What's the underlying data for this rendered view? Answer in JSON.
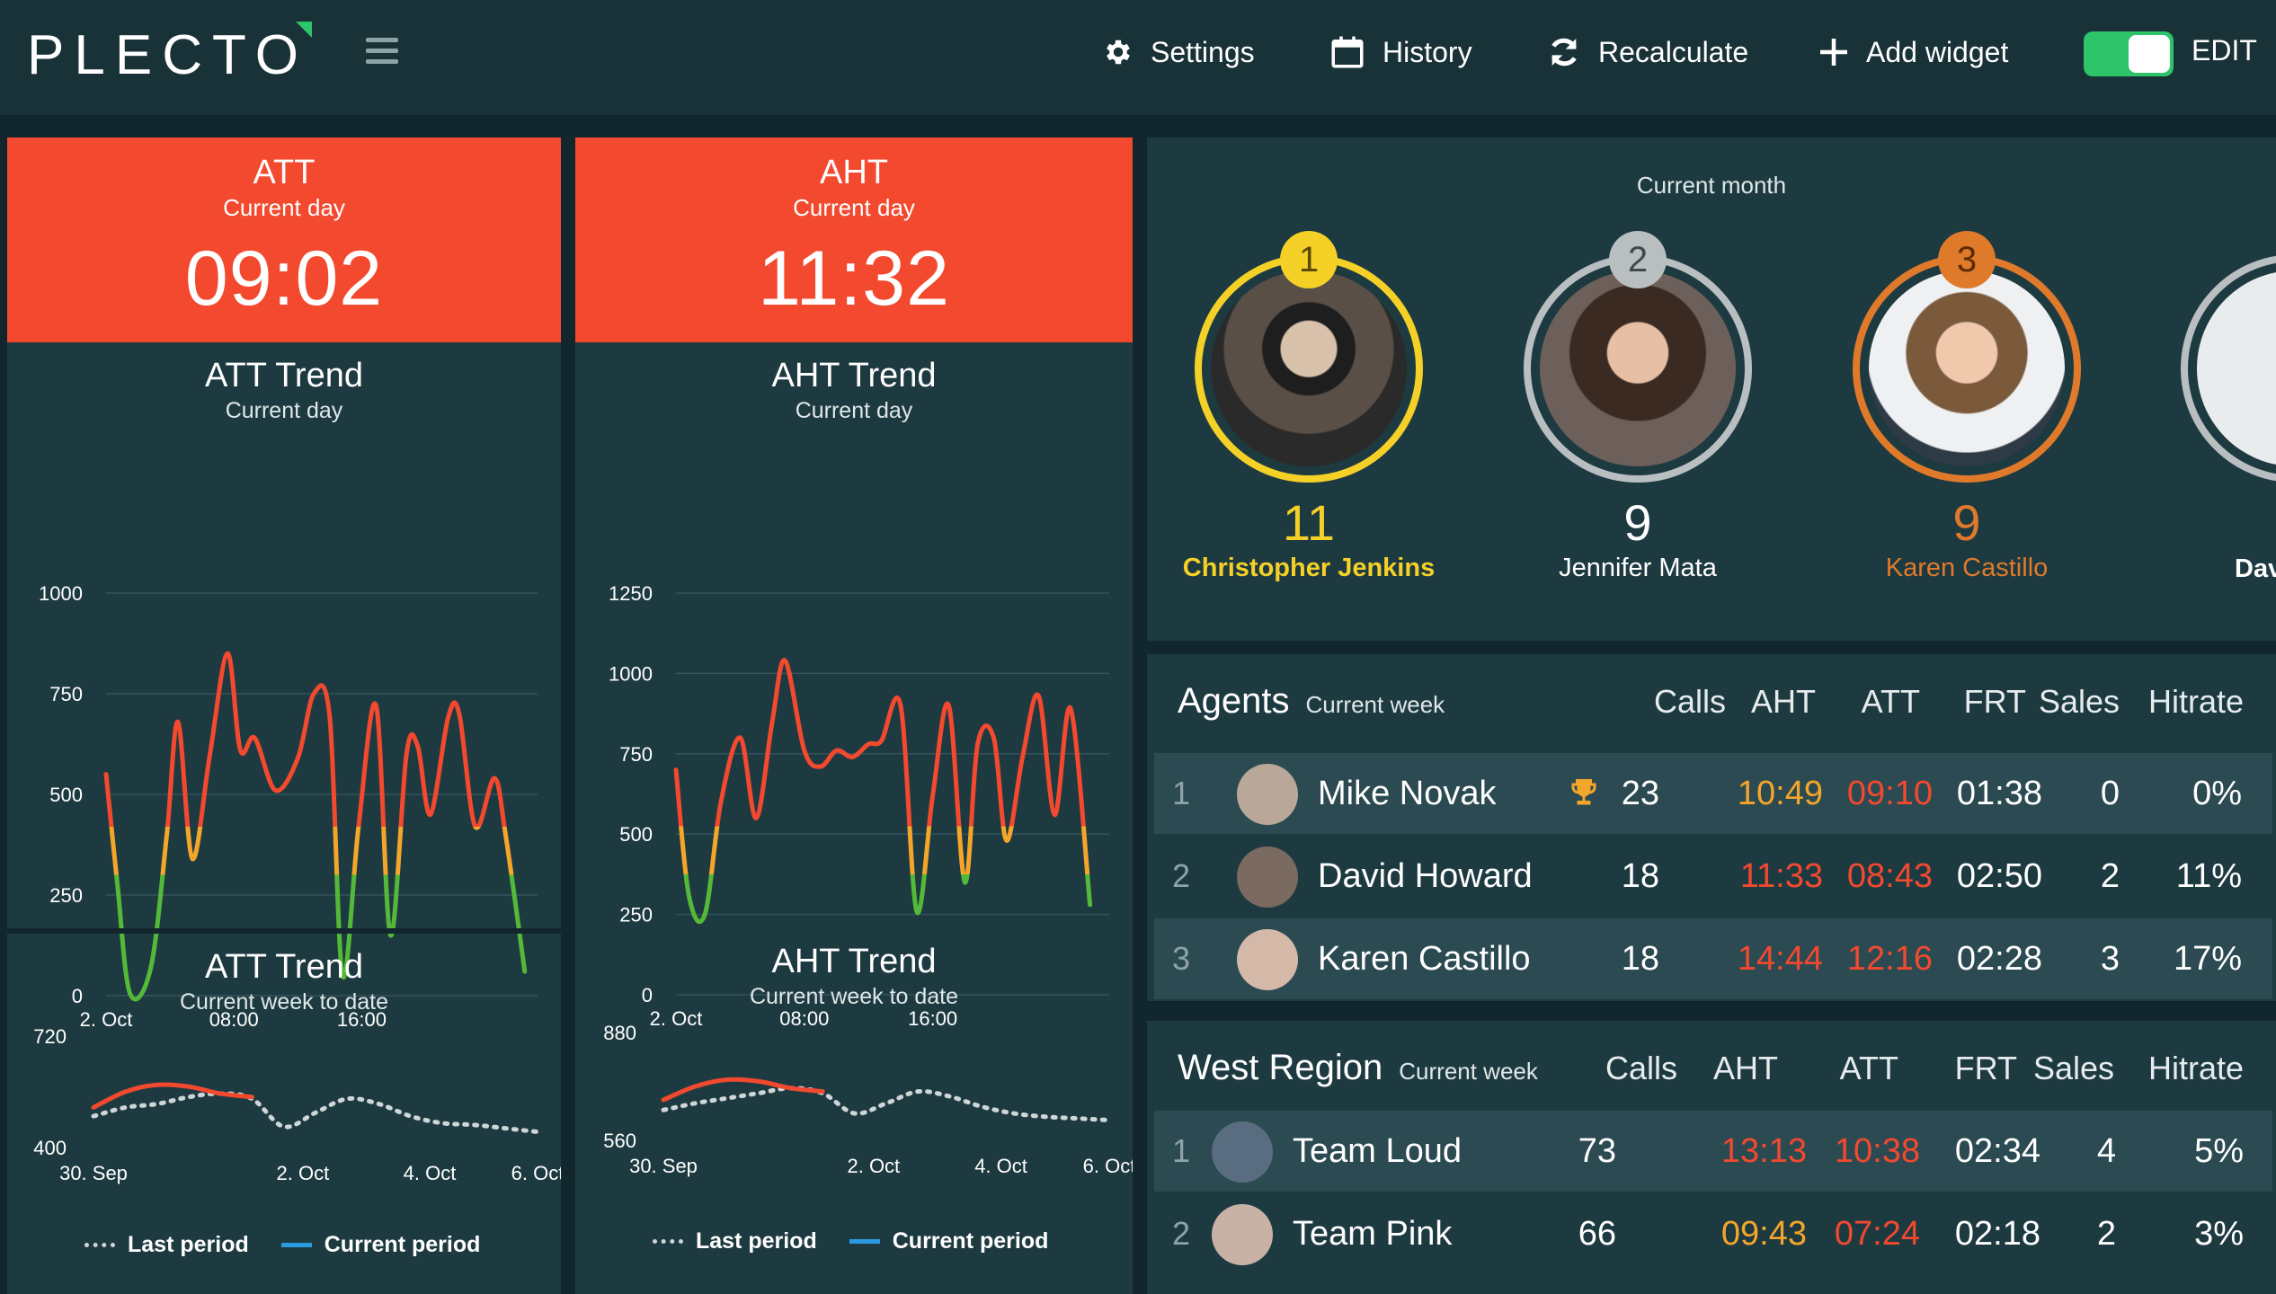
{
  "brand": {
    "logo_text": "PLECTO"
  },
  "nav": {
    "settings": "Settings",
    "history": "History",
    "recalculate": "Recalculate",
    "add_widget": "Add widget",
    "edit": "EDIT"
  },
  "colors": {
    "accent_green": "#2ec46a",
    "kpi_red": "#f2492f",
    "gold": "#f5d127",
    "silver": "#b9bfc1",
    "bronze": "#e07a2b",
    "orange_text": "#f4a62a"
  },
  "att_kpi": {
    "title": "ATT",
    "subtitle": "Current day",
    "value": "09:02"
  },
  "aht_kpi": {
    "title": "AHT",
    "subtitle": "Current day",
    "value": "11:32"
  },
  "att_trend": {
    "title": "ATT Trend",
    "subtitle": "Current day",
    "chart_data": {
      "type": "line",
      "yticks": [
        "1000",
        "750",
        "500",
        "250",
        "0"
      ],
      "xticks": [
        "2. Oct",
        "08:00",
        "16:00"
      ],
      "ylim": [
        0,
        1000
      ],
      "x_hours": [
        0,
        0.7,
        1.5,
        2.8,
        3.8,
        4.5,
        5.4,
        6.5,
        7.6,
        8.4,
        9.3,
        10.6,
        12.0,
        13.0,
        14.0,
        14.8,
        15.8,
        16.9,
        17.8,
        18.8,
        19.5,
        20.3,
        21.4,
        22.1,
        23.1,
        24.3,
        25.0,
        26.2
      ],
      "values": [
        550,
        280,
        5,
        70,
        400,
        680,
        340,
        600,
        850,
        610,
        640,
        510,
        590,
        750,
        690,
        50,
        420,
        720,
        150,
        600,
        620,
        450,
        690,
        700,
        420,
        540,
        400,
        60
      ],
      "color_bands": {
        "above": "#f2492f",
        "mid": "#f4a62a",
        "below": "#54b938"
      }
    }
  },
  "aht_trend": {
    "title": "AHT Trend",
    "subtitle": "Current day",
    "chart_data": {
      "type": "line",
      "yticks": [
        "1250",
        "1000",
        "750",
        "500",
        "250",
        "0"
      ],
      "xticks": [
        "2. Oct",
        "08:00",
        "16:00"
      ],
      "ylim": [
        0,
        1250
      ],
      "x_hours": [
        0,
        0.8,
        1.8,
        2.8,
        4.0,
        5.0,
        6.0,
        6.8,
        8.0,
        9.0,
        10.0,
        11.0,
        12.0,
        12.8,
        14.0,
        15.0,
        16.0,
        17.0,
        18.0,
        18.8,
        19.8,
        20.6,
        21.6,
        22.6,
        23.6,
        24.6,
        25.8
      ],
      "values": [
        700,
        310,
        250,
        600,
        800,
        550,
        850,
        1040,
        760,
        710,
        760,
        740,
        780,
        790,
        900,
        260,
        620,
        900,
        350,
        780,
        800,
        480,
        740,
        930,
        560,
        890,
        280
      ],
      "color_bands": {
        "above": "#f2492f",
        "mid": "#f4a62a",
        "below": "#54b938"
      }
    }
  },
  "att_week": {
    "title": "ATT Trend",
    "subtitle": "Current week to date",
    "chart_data": {
      "type": "line",
      "yticks": [
        "720",
        "400"
      ],
      "xticks": [
        "30. Sep",
        "2. Oct",
        "4. Oct",
        "6. Oct"
      ],
      "ylim": [
        400,
        720
      ],
      "series": [
        {
          "name": "Last period",
          "style": "dotted",
          "x": [
            0,
            0.5,
            1,
            1.5,
            2,
            2.5,
            3,
            3.5,
            4,
            4.5,
            5,
            5.5,
            6,
            6.5,
            7
          ],
          "values": [
            490,
            515,
            525,
            545,
            555,
            540,
            460,
            500,
            540,
            525,
            490,
            470,
            465,
            455,
            445
          ]
        },
        {
          "name": "Current period",
          "style": "solid",
          "x": [
            0,
            0.5,
            1,
            1.5,
            2,
            2.5
          ],
          "values": [
            515,
            560,
            580,
            575,
            555,
            545
          ]
        }
      ],
      "legend": [
        "Last period",
        "Current period"
      ]
    }
  },
  "aht_week": {
    "title": "AHT Trend",
    "subtitle": "Current week to date",
    "chart_data": {
      "type": "line",
      "yticks": [
        "880",
        "560"
      ],
      "xticks": [
        "30. Sep",
        "2. Oct",
        "4. Oct",
        "6. Oct"
      ],
      "ylim": [
        560,
        880
      ],
      "series": [
        {
          "name": "Last period",
          "style": "dotted",
          "x": [
            0,
            0.5,
            1,
            1.5,
            2,
            2.5,
            3,
            3.5,
            4,
            4.5,
            5,
            5.5,
            6,
            6.5,
            7
          ],
          "values": [
            650,
            670,
            685,
            700,
            715,
            700,
            640,
            670,
            705,
            690,
            660,
            640,
            630,
            625,
            620
          ]
        },
        {
          "name": "Current period",
          "style": "solid",
          "x": [
            0,
            0.5,
            1,
            1.5,
            2,
            2.5
          ],
          "values": [
            680,
            720,
            740,
            735,
            715,
            705
          ]
        }
      ],
      "legend": [
        "Last period",
        "Current period"
      ]
    }
  },
  "podium": {
    "period": "Current month",
    "entries": [
      {
        "rank": "1",
        "score": "11",
        "name": "Christopher Jenkins",
        "color": "gold"
      },
      {
        "rank": "2",
        "score": "9",
        "name": "Jennifer Mata",
        "color": "silver"
      },
      {
        "rank": "3",
        "score": "9",
        "name": "Karen Castillo",
        "color": "bronze"
      },
      {
        "rank": "",
        "score": "",
        "name": "Dav",
        "color": "silver"
      }
    ]
  },
  "agents": {
    "title": "Agents",
    "period": "Current week",
    "columns": [
      "Calls",
      "AHT",
      "ATT",
      "FRT",
      "Sales",
      "Hitrate"
    ],
    "rows": [
      {
        "rank": "1",
        "name": "Mike Novak",
        "calls": "23",
        "aht": "10:49",
        "att": "09:10",
        "frt": "01:38",
        "sales": "0",
        "hitrate": "0%",
        "aht_color": "orange",
        "att_color": "red",
        "trophy": true
      },
      {
        "rank": "2",
        "name": "David Howard",
        "calls": "18",
        "aht": "11:33",
        "att": "08:43",
        "frt": "02:50",
        "sales": "2",
        "hitrate": "11%",
        "aht_color": "red",
        "att_color": "red",
        "trophy": false
      },
      {
        "rank": "3",
        "name": "Karen Castillo",
        "calls": "18",
        "aht": "14:44",
        "att": "12:16",
        "frt": "02:28",
        "sales": "3",
        "hitrate": "17%",
        "aht_color": "red",
        "att_color": "red",
        "trophy": false
      }
    ]
  },
  "west": {
    "title": "West Region",
    "period": "Current week",
    "columns": [
      "Calls",
      "AHT",
      "ATT",
      "FRT",
      "Sales",
      "Hitrate"
    ],
    "rows": [
      {
        "rank": "1",
        "name": "Team Loud",
        "calls": "73",
        "aht": "13:13",
        "att": "10:38",
        "frt": "02:34",
        "sales": "4",
        "hitrate": "5%",
        "aht_color": "red",
        "att_color": "red"
      },
      {
        "rank": "2",
        "name": "Team Pink",
        "calls": "66",
        "aht": "09:43",
        "att": "07:24",
        "frt": "02:18",
        "sales": "2",
        "hitrate": "3%",
        "aht_color": "orange",
        "att_color": "red"
      }
    ]
  }
}
